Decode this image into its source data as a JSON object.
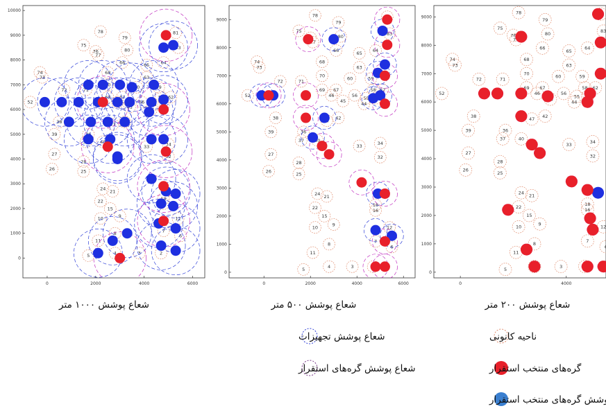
{
  "chart_data": [
    {
      "type": "scatter",
      "caption": "شعاع پوشش ۱۰۰۰ متر",
      "xlim": [
        -1000,
        6500
      ],
      "ylim": [
        -800,
        10200
      ],
      "xticks": [
        0,
        2000,
        4000,
        6000
      ],
      "yticks": [
        0,
        1000,
        2000,
        3000,
        4000,
        5000,
        6000,
        7000,
        8000,
        9000,
        10000
      ],
      "coverage_radius_m": 1000,
      "selected": [
        [
          4900,
          9000
        ],
        [
          2300,
          6300
        ],
        [
          4800,
          6000
        ],
        [
          2500,
          4500
        ],
        [
          3000,
          0
        ],
        [
          4800,
          2900
        ],
        [
          4800,
          1500
        ],
        [
          4900,
          4300
        ]
      ],
      "covered": [
        [
          -100,
          6300
        ],
        [
          600,
          6300
        ],
        [
          1300,
          6300
        ],
        [
          900,
          5500
        ],
        [
          1700,
          7000
        ],
        [
          2300,
          7000
        ],
        [
          3000,
          7000
        ],
        [
          3500,
          6900
        ],
        [
          2100,
          6300
        ],
        [
          2900,
          6300
        ],
        [
          3400,
          6300
        ],
        [
          1800,
          5500
        ],
        [
          2500,
          5500
        ],
        [
          3200,
          5500
        ],
        [
          1700,
          4800
        ],
        [
          2600,
          4800
        ],
        [
          4300,
          4800
        ],
        [
          4800,
          4800
        ],
        [
          2900,
          4100
        ],
        [
          2900,
          4000
        ],
        [
          4300,
          6300
        ],
        [
          4800,
          6400
        ],
        [
          4200,
          5900
        ],
        [
          4400,
          7000
        ],
        [
          4800,
          8500
        ],
        [
          5200,
          8600
        ],
        [
          4300,
          3200
        ],
        [
          4900,
          2700
        ],
        [
          5300,
          2600
        ],
        [
          4700,
          2200
        ],
        [
          5200,
          2100
        ],
        [
          4600,
          1400
        ],
        [
          5300,
          1200
        ],
        [
          4700,
          500
        ],
        [
          5300,
          300
        ],
        [
          2700,
          700
        ],
        [
          2100,
          200
        ],
        [
          3300,
          1000
        ]
      ]
    },
    {
      "type": "scatter",
      "caption": "شعاع پوشش ۵۰۰ متر",
      "xlim": [
        -1500,
        6500
      ],
      "ylim": [
        -200,
        9500
      ],
      "xticks": [
        0,
        2000,
        4000,
        6000
      ],
      "yticks": [
        0,
        1000,
        2000,
        3000,
        4000,
        5000,
        6000,
        7000,
        8000,
        9000
      ],
      "coverage_radius_m": 500,
      "selected": [
        [
          5300,
          9000
        ],
        [
          1900,
          8300
        ],
        [
          5300,
          8100
        ],
        [
          5200,
          7000
        ],
        [
          5200,
          6000
        ],
        [
          1800,
          6300
        ],
        [
          1800,
          5500
        ],
        [
          2500,
          4500
        ],
        [
          2800,
          4200
        ],
        [
          4200,
          3200
        ],
        [
          5200,
          2800
        ],
        [
          5200,
          1100
        ],
        [
          4800,
          200
        ],
        [
          5200,
          200
        ],
        [
          200,
          6300
        ]
      ],
      "covered": [
        [
          3000,
          8300
        ],
        [
          5100,
          8600
        ],
        [
          5200,
          7400
        ],
        [
          4900,
          7100
        ],
        [
          -100,
          6300
        ],
        [
          400,
          6300
        ],
        [
          4700,
          6200
        ],
        [
          5000,
          6300
        ],
        [
          2600,
          5500
        ],
        [
          2100,
          4800
        ],
        [
          4900,
          2800
        ],
        [
          4800,
          1500
        ],
        [
          5500,
          1300
        ]
      ]
    },
    {
      "type": "scatter",
      "caption": "شعاع پوشش ۲۰۰ متر",
      "xlim": [
        -1000,
        5500
      ],
      "ylim": [
        -200,
        9400
      ],
      "xticks": [
        0,
        4000
      ],
      "yticks": [
        0,
        1000,
        2000,
        3000,
        4000,
        5000,
        6000,
        7000,
        8000,
        9000
      ],
      "coverage_radius_m": 200,
      "selected": [
        [
          5200,
          9100
        ],
        [
          5300,
          8100
        ],
        [
          2300,
          8300
        ],
        [
          5300,
          7000
        ],
        [
          900,
          6300
        ],
        [
          1400,
          6300
        ],
        [
          2300,
          6300
        ],
        [
          3300,
          6200
        ],
        [
          4900,
          6300
        ],
        [
          4800,
          6000
        ],
        [
          2300,
          5500
        ],
        [
          2700,
          4500
        ],
        [
          3000,
          4200
        ],
        [
          4200,
          3200
        ],
        [
          4800,
          2900
        ],
        [
          1800,
          2200
        ],
        [
          4900,
          1900
        ],
        [
          5000,
          1500
        ],
        [
          2500,
          800
        ],
        [
          2800,
          200
        ],
        [
          4800,
          200
        ],
        [
          5400,
          200
        ]
      ],
      "covered": [
        [
          5200,
          2800
        ]
      ]
    }
  ],
  "node_labels": [
    {
      "t": "78",
      "x": 2200,
      "y": 9150
    },
    {
      "t": "79",
      "x": 3200,
      "y": 8900
    },
    {
      "t": "80",
      "x": 3300,
      "y": 8400
    },
    {
      "t": "81",
      "x": 5300,
      "y": 9100
    },
    {
      "t": "83",
      "x": 5400,
      "y": 8500
    },
    {
      "t": "75",
      "x": 1500,
      "y": 8600
    },
    {
      "t": "77",
      "x": 2100,
      "y": 8200
    },
    {
      "t": "76",
      "x": 2000,
      "y": 8350
    },
    {
      "t": "66",
      "x": 3100,
      "y": 7900
    },
    {
      "t": "65",
      "x": 4100,
      "y": 7800
    },
    {
      "t": "64",
      "x": 4800,
      "y": 7900
    },
    {
      "t": "68",
      "x": 2500,
      "y": 7500
    },
    {
      "t": "63",
      "x": 4100,
      "y": 7300
    },
    {
      "t": "74",
      "x": -300,
      "y": 7500
    },
    {
      "t": "73",
      "x": -200,
      "y": 7300
    },
    {
      "t": "72",
      "x": 700,
      "y": 6800
    },
    {
      "t": "71",
      "x": 1600,
      "y": 6800
    },
    {
      "t": "70",
      "x": 2500,
      "y": 7000
    },
    {
      "t": "60",
      "x": 3700,
      "y": 6900
    },
    {
      "t": "59",
      "x": 4600,
      "y": 6900
    },
    {
      "t": "62",
      "x": 5100,
      "y": 6500
    },
    {
      "t": "69",
      "x": 2500,
      "y": 6500
    },
    {
      "t": "67",
      "x": 3100,
      "y": 6500
    },
    {
      "t": "56",
      "x": 3900,
      "y": 6300
    },
    {
      "t": "58",
      "x": 4700,
      "y": 6500
    },
    {
      "t": "55",
      "x": 4400,
      "y": 6200
    },
    {
      "t": "52",
      "x": -700,
      "y": 6300
    },
    {
      "t": "54",
      "x": 4800,
      "y": 6200
    },
    {
      "t": "46",
      "x": 2900,
      "y": 6300
    },
    {
      "t": "45",
      "x": 3400,
      "y": 6100
    },
    {
      "t": "44",
      "x": 4300,
      "y": 6000
    },
    {
      "t": "38",
      "x": 500,
      "y": 5500
    },
    {
      "t": "47",
      "x": 2700,
      "y": 5400
    },
    {
      "t": "42",
      "x": 3200,
      "y": 5500
    },
    {
      "t": "39",
      "x": 300,
      "y": 5000
    },
    {
      "t": "36",
      "x": 1700,
      "y": 5000
    },
    {
      "t": "37",
      "x": 1600,
      "y": 4700
    },
    {
      "t": "40",
      "x": 2300,
      "y": 4700
    },
    {
      "t": "27",
      "x": 300,
      "y": 4200
    },
    {
      "t": "33",
      "x": 4100,
      "y": 4500
    },
    {
      "t": "34",
      "x": 5000,
      "y": 4600
    },
    {
      "t": "32",
      "x": 5000,
      "y": 4100
    },
    {
      "t": "28",
      "x": 1500,
      "y": 3900
    },
    {
      "t": "26",
      "x": 200,
      "y": 3600
    },
    {
      "t": "25",
      "x": 1500,
      "y": 3500
    },
    {
      "t": "24",
      "x": 2300,
      "y": 2800
    },
    {
      "t": "21",
      "x": 2700,
      "y": 2700
    },
    {
      "t": "22",
      "x": 2200,
      "y": 2300
    },
    {
      "t": "15",
      "x": 2600,
      "y": 2000
    },
    {
      "t": "18",
      "x": 4800,
      "y": 2400
    },
    {
      "t": "16",
      "x": 4800,
      "y": 2200
    },
    {
      "t": "9",
      "x": 3000,
      "y": 1700
    },
    {
      "t": "10",
      "x": 2200,
      "y": 1600
    },
    {
      "t": "12",
      "x": 5400,
      "y": 1600
    },
    {
      "t": "8",
      "x": 2800,
      "y": 1000
    },
    {
      "t": "7",
      "x": 4800,
      "y": 1100
    },
    {
      "t": "6",
      "x": 5500,
      "y": 900
    },
    {
      "t": "11",
      "x": 2100,
      "y": 700
    },
    {
      "t": "4",
      "x": 2800,
      "y": 200
    },
    {
      "t": "5",
      "x": 1700,
      "y": 100
    },
    {
      "t": "3",
      "x": 3800,
      "y": 200
    },
    {
      "t": "2",
      "x": 4700,
      "y": 200
    }
  ],
  "legend": {
    "candidate_area": "ناحیه کانونی",
    "equipment_coverage": "شعاع پوشش تجهیزات",
    "selected_nodes": "گره‌های منتخب استقرار",
    "selected_coverage": "شعاع پوشش گره‌های استقرار",
    "covered_nodes": "گره‌های انتخاب‌نشده تحت پوشش گره‌های منتخب استقرار"
  },
  "colors": {
    "selected": "#e8202a",
    "covered": "#1e2fe0",
    "candidate_ring": "#e08a6a",
    "equipment_ring": "#3040d8",
    "selected_ring": "#c030c0",
    "legend_covered": "#3a7fd0"
  }
}
